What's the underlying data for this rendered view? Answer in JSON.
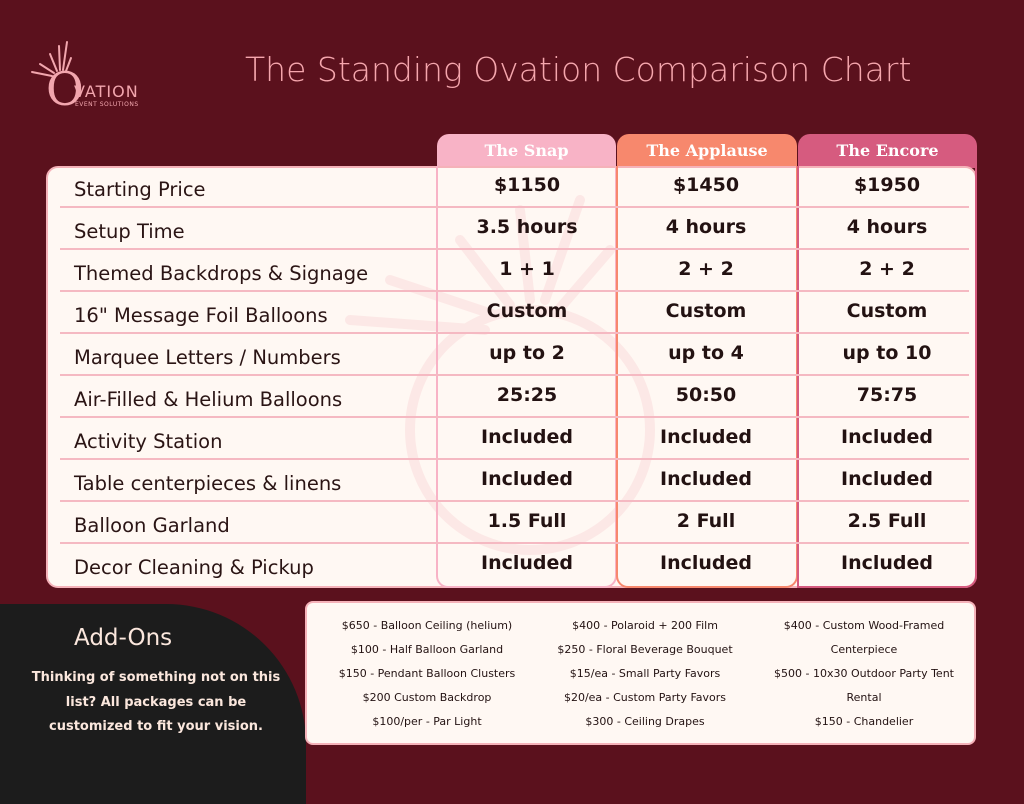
{
  "logo": {
    "letter": "O",
    "name": "VATION",
    "sub": "EVENT SOLUTIONS"
  },
  "title": "The Standing Ovation Comparison Chart",
  "packages": [
    "The Snap",
    "The Applause",
    "The Encore"
  ],
  "colors": {
    "background": "#5b111d",
    "snap": "#f8b3c6",
    "applause": "#f7886d",
    "encore": "#d65b7f",
    "title": "#f5a6ad"
  },
  "rows": [
    {
      "label": "Starting Price",
      "values": [
        "$1150",
        "$1450",
        "$1950"
      ]
    },
    {
      "label": "Setup Time",
      "values": [
        "3.5 hours",
        "4 hours",
        "4 hours"
      ]
    },
    {
      "label": "Themed Backdrops & Signage",
      "values": [
        "1 + 1",
        "2 + 2",
        "2 + 2"
      ]
    },
    {
      "label": "16\" Message Foil Balloons",
      "values": [
        "Custom",
        "Custom",
        "Custom"
      ]
    },
    {
      "label": "Marquee Letters / Numbers",
      "values": [
        "up to 2",
        "up to 4",
        "up to 10"
      ]
    },
    {
      "label": "Air-Filled & Helium Balloons",
      "values": [
        "25:25",
        "50:50",
        "75:75"
      ]
    },
    {
      "label": "Activity Station",
      "values": [
        "Included",
        "Included",
        "Included"
      ]
    },
    {
      "label": "Table centerpieces & linens",
      "values": [
        "Included",
        "Included",
        "Included"
      ]
    },
    {
      "label": "Balloon Garland",
      "values": [
        "1.5 Full",
        "2 Full",
        "2.5 Full"
      ]
    },
    {
      "label": "Decor Cleaning & Pickup",
      "values": [
        "Included",
        "Included",
        "Included"
      ]
    }
  ],
  "addons": {
    "title": "Add-Ons",
    "description": "Thinking of something not on this list? All packages can be customized to fit your vision.",
    "columns": [
      [
        "$650 - Balloon Ceiling (helium)",
        "$100 - Half Balloon Garland",
        "$150 - Pendant Balloon Clusters",
        "$200 Custom Backdrop",
        "$100/per - Par Light"
      ],
      [
        "$400 - Polaroid + 200 Film",
        "$250 - Floral Beverage Bouquet",
        "$15/ea - Small Party Favors",
        "$20/ea - Custom Party Favors",
        "$300 - Ceiling Drapes"
      ],
      [
        "$400 - Custom Wood-Framed",
        "Centerpiece",
        "$500 - 10x30 Outdoor Party Tent",
        "Rental",
        "$150 - Chandelier"
      ]
    ]
  }
}
